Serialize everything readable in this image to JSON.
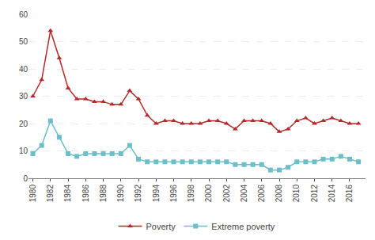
{
  "chart_data": {
    "type": "line",
    "x": [
      1980,
      1981,
      1982,
      1983,
      1984,
      1985,
      1986,
      1987,
      1988,
      1989,
      1990,
      1991,
      1992,
      1993,
      1994,
      1995,
      1996,
      1997,
      1998,
      1999,
      2000,
      2001,
      2002,
      2003,
      2004,
      2005,
      2006,
      2007,
      2008,
      2009,
      2010,
      2011,
      2012,
      2013,
      2014,
      2015,
      2016,
      2017
    ],
    "series": [
      {
        "name": "Poverty",
        "color": "#b5292a",
        "marker": "triangle-up",
        "values": [
          30,
          36,
          54,
          44,
          33,
          29,
          29,
          28,
          28,
          27,
          27,
          32,
          29,
          23,
          20,
          21,
          21,
          20,
          20,
          20,
          21,
          21,
          20,
          18,
          21,
          21,
          21,
          20,
          17,
          18,
          21,
          22,
          20,
          21,
          22,
          21,
          20,
          20
        ]
      },
      {
        "name": "Extreme poverty",
        "color": "#6cbfc8",
        "marker": "square",
        "values": [
          9,
          12,
          21,
          15,
          9,
          8,
          9,
          9,
          9,
          9,
          9,
          12,
          7,
          6,
          6,
          6,
          6,
          6,
          6,
          6,
          6,
          6,
          6,
          5,
          5,
          5,
          5,
          3,
          3,
          4,
          6,
          6,
          6,
          7,
          7,
          8,
          7,
          6
        ]
      }
    ],
    "xlim": [
      1979.5,
      2017.8
    ],
    "ylim": [
      0,
      60
    ],
    "xticks": [
      1980,
      1982,
      1984,
      1986,
      1988,
      1990,
      1992,
      1994,
      1996,
      1998,
      2000,
      2002,
      2004,
      2006,
      2008,
      2010,
      2012,
      2014,
      2016
    ],
    "yticks": [
      0,
      10,
      20,
      30,
      40,
      50,
      60
    ],
    "grid": "y",
    "legend": "bottom"
  }
}
